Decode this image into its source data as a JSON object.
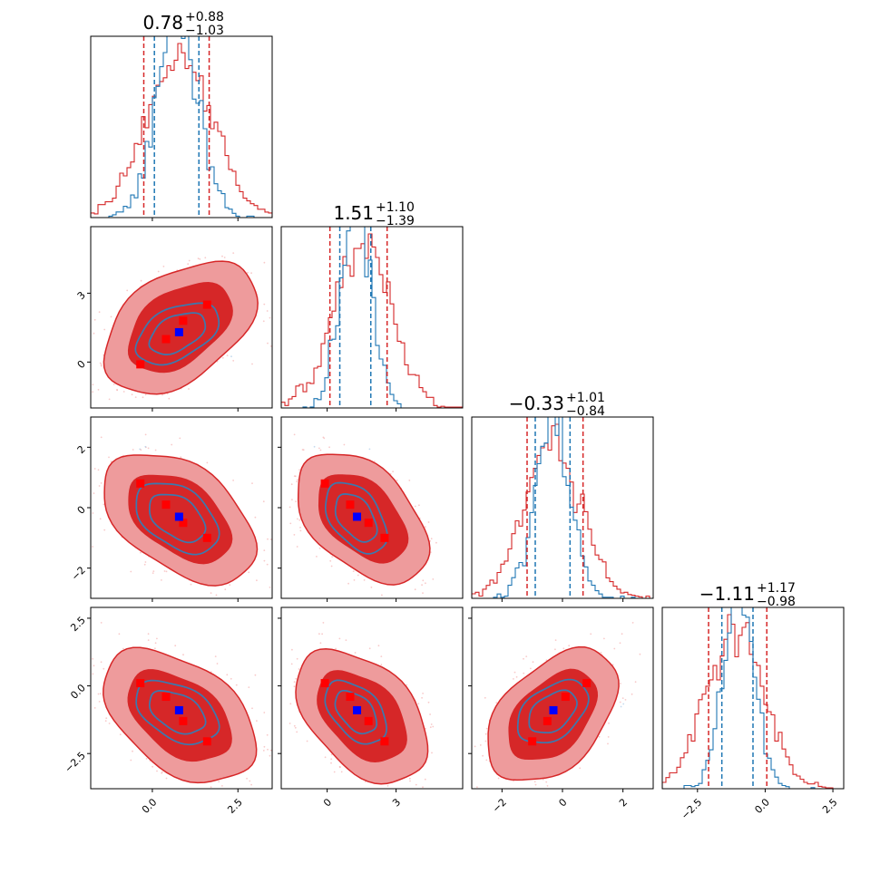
{
  "chart_data": {
    "type": "corner",
    "parameters": [
      {
        "title_main": "0.78",
        "title_plus": "+0.88",
        "title_minus": "−1.03",
        "range": [
          -1.8,
          3.5
        ],
        "ticks": [
          0.0,
          2.5
        ],
        "tick_labels": [
          "0.0",
          "2.5"
        ],
        "median": 0.78,
        "lower": -0.25,
        "upper": 1.66,
        "second_lower": 0.06,
        "second_upper": 1.36,
        "point_value": 0.78
      },
      {
        "title_main": "1.51",
        "title_plus": "+1.10",
        "title_minus": "−1.39",
        "range": [
          -2.0,
          5.9
        ],
        "ticks": [
          0,
          3
        ],
        "tick_labels": [
          "0",
          "3"
        ],
        "median": 1.51,
        "lower": 0.12,
        "upper": 2.61,
        "second_lower": 0.55,
        "second_upper": 1.9,
        "point_value": 1.3
      },
      {
        "title_main": "−0.33",
        "title_plus": "+1.01",
        "title_minus": "−0.84",
        "range": [
          -3.0,
          3.0
        ],
        "ticks": [
          -2,
          0,
          2
        ],
        "tick_labels": [
          "−2",
          "0",
          "2"
        ],
        "median": -0.33,
        "lower": -1.17,
        "upper": 0.68,
        "second_lower": -0.9,
        "second_upper": 0.25,
        "point_value": -0.3
      },
      {
        "title_main": "−1.11",
        "title_plus": "+1.17",
        "title_minus": "−0.98",
        "range": [
          -3.8,
          2.9
        ],
        "ticks": [
          -2.5,
          0.0,
          2.5
        ],
        "tick_labels": [
          "−2.5",
          "0.0",
          "2.5"
        ],
        "median": -1.11,
        "lower": -2.09,
        "upper": 0.06,
        "second_lower": -1.6,
        "second_upper": -0.45,
        "point_value": -0.9
      }
    ],
    "sample_set_a": {
      "color": "#d62728",
      "mean": [
        0.78,
        1.51,
        -0.33,
        -1.11
      ],
      "sd": [
        0.95,
        1.25,
        0.93,
        1.07
      ]
    },
    "sample_set_b": {
      "color": "#1f77b4",
      "mean": [
        0.72,
        1.25,
        -0.32,
        -0.98
      ],
      "sd": [
        0.62,
        0.65,
        0.58,
        0.58
      ]
    },
    "marker_colors": {
      "reference": "#0000ff",
      "other": "#ff0000"
    },
    "red_markers": [
      [
        -0.35,
        -0.1,
        0.8,
        0.1
      ],
      [
        0.4,
        1.0,
        0.1,
        -0.4
      ],
      [
        0.9,
        1.8,
        -0.5,
        -1.3
      ],
      [
        1.6,
        2.5,
        -1.0,
        -2.05
      ]
    ],
    "grid": false,
    "legend": "none"
  }
}
